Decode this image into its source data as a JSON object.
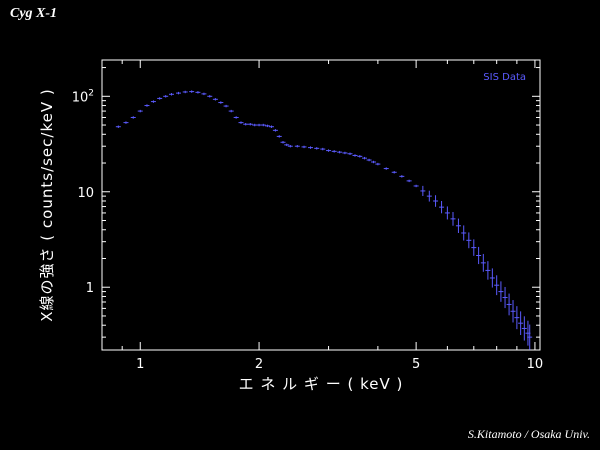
{
  "header": {
    "title": "Cyg X-1"
  },
  "footer": {
    "credit": "S.Kitamoto / Osaka Univ."
  },
  "chart_data": {
    "type": "scatter",
    "title": "",
    "xlabel": "エ ネ ル ギ ー ( keV )",
    "ylabel": "X線の強さ ( counts/sec/keV )",
    "xscale": "log",
    "yscale": "log",
    "xlim": [
      0.8,
      10.3
    ],
    "ylim": [
      0.22,
      240
    ],
    "x_ticks": [
      {
        "value": 1,
        "label": "1"
      },
      {
        "value": 2,
        "label": "2"
      },
      {
        "value": 5,
        "label": "5"
      },
      {
        "value": 10,
        "label": "10"
      }
    ],
    "y_ticks": [
      {
        "value": 1,
        "label": "1"
      },
      {
        "value": 10,
        "label": "10"
      },
      {
        "value": 100,
        "label": "10",
        "sup": "2"
      }
    ],
    "legend": {
      "text": "SIS Data",
      "placement": "top-right"
    },
    "grid": false,
    "series": [
      {
        "name": "SIS Data",
        "color": "#5b5bff",
        "points": [
          [
            0.88,
            48
          ],
          [
            0.92,
            53
          ],
          [
            0.96,
            60
          ],
          [
            1.0,
            70
          ],
          [
            1.04,
            80
          ],
          [
            1.08,
            88
          ],
          [
            1.12,
            95
          ],
          [
            1.16,
            100
          ],
          [
            1.2,
            105
          ],
          [
            1.25,
            108
          ],
          [
            1.3,
            111
          ],
          [
            1.35,
            112
          ],
          [
            1.4,
            110
          ],
          [
            1.45,
            106
          ],
          [
            1.5,
            100
          ],
          [
            1.55,
            93
          ],
          [
            1.6,
            86
          ],
          [
            1.65,
            79
          ],
          [
            1.7,
            70
          ],
          [
            1.75,
            60
          ],
          [
            1.8,
            53
          ],
          [
            1.85,
            51
          ],
          [
            1.9,
            51
          ],
          [
            1.95,
            50
          ],
          [
            2.0,
            50
          ],
          [
            2.05,
            50
          ],
          [
            2.1,
            49
          ],
          [
            2.15,
            48
          ],
          [
            2.2,
            44
          ],
          [
            2.25,
            38
          ],
          [
            2.3,
            33
          ],
          [
            2.35,
            31
          ],
          [
            2.4,
            30
          ],
          [
            2.5,
            30
          ],
          [
            2.6,
            29.5
          ],
          [
            2.7,
            29
          ],
          [
            2.8,
            28.5
          ],
          [
            2.9,
            28
          ],
          [
            3.0,
            27
          ],
          [
            3.1,
            26.5
          ],
          [
            3.2,
            26
          ],
          [
            3.3,
            25.5
          ],
          [
            3.4,
            25
          ],
          [
            3.5,
            24
          ],
          [
            3.6,
            23.5
          ],
          [
            3.7,
            22.5
          ],
          [
            3.8,
            21.5
          ],
          [
            3.9,
            20.5
          ],
          [
            4.0,
            19.5
          ],
          [
            4.2,
            17.5
          ],
          [
            4.4,
            16
          ],
          [
            4.6,
            14.5
          ],
          [
            4.8,
            13
          ],
          [
            5.0,
            11.5
          ],
          [
            5.2,
            10.2
          ],
          [
            5.4,
            9.0
          ],
          [
            5.6,
            8.0
          ],
          [
            5.8,
            6.9
          ],
          [
            6.0,
            6.0
          ],
          [
            6.2,
            5.2
          ],
          [
            6.4,
            4.4
          ],
          [
            6.6,
            3.7
          ],
          [
            6.8,
            3.1
          ],
          [
            7.0,
            2.6
          ],
          [
            7.2,
            2.15
          ],
          [
            7.4,
            1.8
          ],
          [
            7.6,
            1.5
          ],
          [
            7.8,
            1.25
          ],
          [
            8.0,
            1.05
          ],
          [
            8.2,
            0.9
          ],
          [
            8.4,
            0.78
          ],
          [
            8.6,
            0.66
          ],
          [
            8.8,
            0.56
          ],
          [
            9.0,
            0.48
          ],
          [
            9.2,
            0.42
          ],
          [
            9.4,
            0.37
          ],
          [
            9.6,
            0.33
          ],
          [
            9.7,
            0.3
          ]
        ]
      }
    ]
  }
}
